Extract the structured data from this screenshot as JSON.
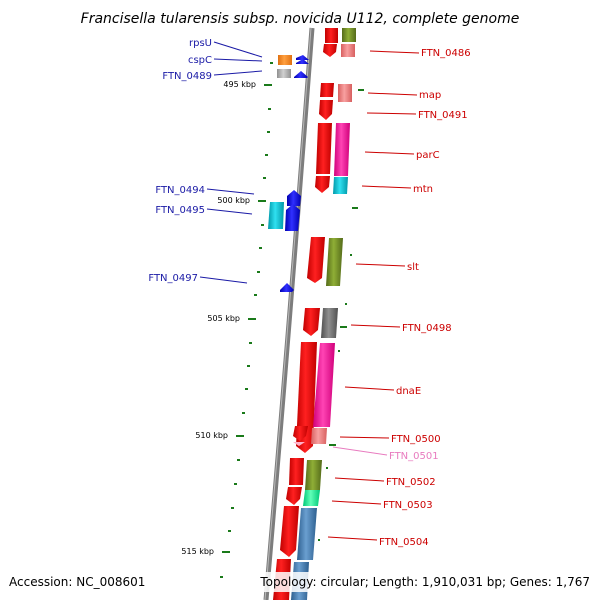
{
  "title": "Francisella tularensis subsp. novicida U112, complete genome",
  "footer": {
    "accession": "Accession: NC_008601",
    "topology": "Topology: circular; Length: 1,910,031 bp; Genes: 1,767"
  },
  "kbp_ticks": [
    "495 kbp",
    "500 kbp",
    "505 kbp",
    "510 kbp",
    "515 kbp"
  ],
  "left_gene_labels": [
    {
      "name": "rpsU",
      "color": "#1a1aa6"
    },
    {
      "name": "cspC",
      "color": "#1a1aa6"
    },
    {
      "name": "FTN_0489",
      "color": "#1a1aa6"
    },
    {
      "name": "FTN_0494",
      "color": "#1a1aa6"
    },
    {
      "name": "FTN_0495",
      "color": "#1a1aa6"
    },
    {
      "name": "FTN_0497",
      "color": "#1a1aa6"
    }
  ],
  "right_gene_labels": [
    {
      "name": "FTN_0486",
      "color": "#cc0000"
    },
    {
      "name": "map",
      "color": "#cc0000"
    },
    {
      "name": "FTN_0491",
      "color": "#cc0000"
    },
    {
      "name": "parC",
      "color": "#cc0000"
    },
    {
      "name": "mtn",
      "color": "#cc0000"
    },
    {
      "name": "slt",
      "color": "#cc0000"
    },
    {
      "name": "FTN_0498",
      "color": "#cc0000"
    },
    {
      "name": "dnaE",
      "color": "#cc0000"
    },
    {
      "name": "FTN_0500",
      "color": "#cc0000"
    },
    {
      "name": "FTN_0501",
      "color": "#e87bbf"
    },
    {
      "name": "FTN_0502",
      "color": "#cc0000"
    },
    {
      "name": "FTN_0503",
      "color": "#cc0000"
    },
    {
      "name": "FTN_0504",
      "color": "#cc0000"
    }
  ],
  "colors": {
    "backbone": "#808080",
    "forward_gene": "#ff0000",
    "reverse_gene": "#0000ff",
    "olive": "#7a9a2a",
    "pink": "#ff1aa0",
    "salmon": "#f08080",
    "cyan": "#00c8d8",
    "steelblue": "#4f86b8",
    "grey": "#707070",
    "green": "#00ff99",
    "orange": "#ff9933",
    "tick": "#1a7a1a"
  }
}
